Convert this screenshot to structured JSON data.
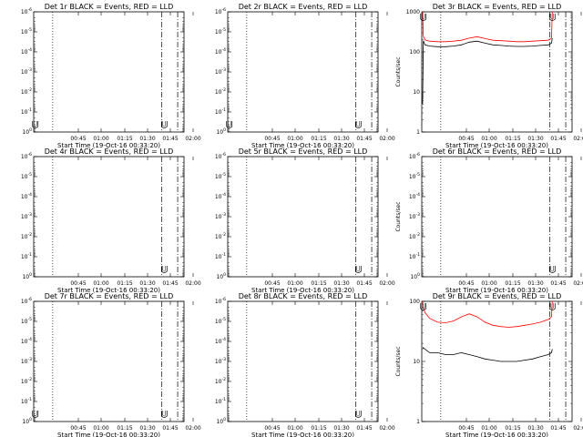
{
  "chart_data": [
    {
      "type": "line",
      "title": "Det 1r BLACK = Events, RED = LLD",
      "xlabel": "Start Time (19-Oct-16 00:33:20)",
      "ylabel": "",
      "xticks": [
        "00:45",
        "01:00",
        "01:15",
        "01:30",
        "01:45",
        "02:00"
      ],
      "yscale": "log",
      "ytick_labels": [
        "10^0",
        "10^-1",
        "10^-2",
        "10^-3",
        "10^-4",
        "10^-5",
        "10^-6"
      ],
      "yticks_value": [
        1,
        0.1,
        0.01,
        0.001,
        0.0001,
        1e-05,
        1e-06
      ],
      "ylim": [
        1,
        1e-06
      ],
      "xlim_minutes": [
        0,
        95
      ],
      "vlines": [
        {
          "t": 12,
          "style": "dotted"
        },
        {
          "t": 81,
          "style": "dashdot"
        },
        {
          "t": 91,
          "style": "dashdot"
        }
      ],
      "markers": [
        {
          "t": 1,
          "symbol": "U"
        },
        {
          "t": 82.5,
          "symbol": "U"
        }
      ],
      "series": []
    },
    {
      "type": "line",
      "title": "Det 2r BLACK = Events, RED = LLD",
      "xlabel": "Start Time (19-Oct-16 00:33:20)",
      "ylabel": "",
      "xticks": [
        "00:45",
        "01:00",
        "01:15",
        "01:30",
        "01:45",
        "02:00"
      ],
      "yscale": "log",
      "ytick_labels": [
        "10^0",
        "10^-1",
        "10^-2",
        "10^-3",
        "10^-4",
        "10^-5",
        "10^-6"
      ],
      "yticks_value": [
        1,
        0.1,
        0.01,
        0.001,
        0.0001,
        1e-05,
        1e-06
      ],
      "ylim": [
        1,
        1e-06
      ],
      "xlim_minutes": [
        0,
        95
      ],
      "vlines": [
        {
          "t": 12,
          "style": "dotted"
        },
        {
          "t": 81,
          "style": "dashdot"
        },
        {
          "t": 91,
          "style": "dashdot"
        }
      ],
      "markers": [
        {
          "t": 1,
          "symbol": "U"
        },
        {
          "t": 82.5,
          "symbol": "U"
        }
      ],
      "series": []
    },
    {
      "type": "line",
      "title": "Det 3r BLACK = Events, RED = LLD",
      "xlabel": "Start Time (19-Oct-16 00:33:20)",
      "ylabel": "Counts/sec",
      "xticks": [
        "00:45",
        "01:00",
        "01:15",
        "01:30",
        "01:45",
        "02:00"
      ],
      "yscale": "log",
      "ytick_labels": [
        "1",
        "10",
        "100",
        "1000"
      ],
      "yticks_value": [
        1,
        10,
        100,
        1000
      ],
      "ylim": [
        1,
        1000
      ],
      "xlim_minutes": [
        0,
        95
      ],
      "vlines": [
        {
          "t": 12,
          "style": "dotted"
        },
        {
          "t": 81,
          "style": "dashdot"
        },
        {
          "t": 91,
          "style": "dashdot"
        }
      ],
      "markers": [
        {
          "t": 1,
          "symbol": "U"
        },
        {
          "t": 82.5,
          "symbol": "U"
        }
      ],
      "series": [
        {
          "color": "#ff0000",
          "t": [
            0.5,
            1,
            2,
            5,
            10,
            15,
            20,
            25,
            30,
            35,
            40,
            45,
            50,
            55,
            60,
            65,
            70,
            75,
            80,
            82,
            82.5
          ],
          "y": [
            1000,
            250,
            200,
            185,
            180,
            180,
            185,
            195,
            220,
            240,
            215,
            195,
            190,
            185,
            180,
            180,
            185,
            190,
            195,
            220,
            1000
          ]
        },
        {
          "color": "#000000",
          "t": [
            0.5,
            1,
            2,
            5,
            10,
            15,
            20,
            25,
            30,
            35,
            40,
            45,
            50,
            55,
            60,
            65,
            70,
            75,
            80,
            82,
            82.5
          ],
          "y": [
            5,
            190,
            150,
            140,
            135,
            135,
            140,
            150,
            175,
            185,
            165,
            150,
            145,
            140,
            137,
            137,
            140,
            145,
            150,
            165,
            220
          ]
        }
      ]
    },
    {
      "type": "line",
      "title": "Det 4r BLACK = Events, RED = LLD",
      "xlabel": "Start Time (19-Oct-16 00:33:20)",
      "ylabel": "",
      "xticks": [
        "00:45",
        "01:00",
        "01:15",
        "01:30",
        "01:45",
        "02:00"
      ],
      "yscale": "log",
      "ytick_labels": [
        "10^0",
        "10^-1",
        "10^-2",
        "10^-3",
        "10^-4",
        "10^-5",
        "10^-6"
      ],
      "yticks_value": [
        1,
        0.1,
        0.01,
        0.001,
        0.0001,
        1e-05,
        1e-06
      ],
      "ylim": [
        1,
        1e-06
      ],
      "xlim_minutes": [
        0,
        95
      ],
      "vlines": [
        {
          "t": 12,
          "style": "dotted"
        },
        {
          "t": 81,
          "style": "dashdot"
        },
        {
          "t": 91,
          "style": "dashdot"
        }
      ],
      "markers": [
        {
          "t": 82.5,
          "symbol": "U"
        }
      ],
      "series": []
    },
    {
      "type": "line",
      "title": "Det 5r BLACK = Events, RED = LLD",
      "xlabel": "Start Time (19-Oct-16 00:33:20)",
      "ylabel": "",
      "xticks": [
        "00:45",
        "01:00",
        "01:15",
        "01:30",
        "01:45",
        "02:00"
      ],
      "yscale": "log",
      "ytick_labels": [
        "10^0",
        "10^-1",
        "10^-2",
        "10^-3",
        "10^-4",
        "10^-5",
        "10^-6"
      ],
      "yticks_value": [
        1,
        0.1,
        0.01,
        0.001,
        0.0001,
        1e-05,
        1e-06
      ],
      "ylim": [
        1,
        1e-06
      ],
      "xlim_minutes": [
        0,
        95
      ],
      "vlines": [
        {
          "t": 12,
          "style": "dotted"
        },
        {
          "t": 81,
          "style": "dashdot"
        },
        {
          "t": 91,
          "style": "dashdot"
        }
      ],
      "markers": [
        {
          "t": 82.5,
          "symbol": "U"
        }
      ],
      "series": []
    },
    {
      "type": "line",
      "title": "Det 6r BLACK = Events, RED = LLD",
      "xlabel": "Start Time (19-Oct-16 00:33:20)",
      "ylabel": "Counts/sec",
      "xticks": [
        "00:45",
        "01:00",
        "01:15",
        "01:30",
        "01:45",
        "02:00"
      ],
      "yscale": "log",
      "ytick_labels": [
        "10^0",
        "10^-1",
        "10^-2",
        "10^-3",
        "10^-4",
        "10^-5",
        "10^-6"
      ],
      "yticks_value": [
        1,
        0.1,
        0.01,
        0.001,
        0.0001,
        1e-05,
        1e-06
      ],
      "ylim": [
        1,
        1e-06
      ],
      "xlim_minutes": [
        0,
        95
      ],
      "vlines": [
        {
          "t": 12,
          "style": "dotted"
        },
        {
          "t": 81,
          "style": "dashdot"
        },
        {
          "t": 91,
          "style": "dashdot"
        }
      ],
      "markers": [
        {
          "t": 82.5,
          "symbol": "U"
        }
      ],
      "series": []
    },
    {
      "type": "line",
      "title": "Det 7r BLACK = Events, RED = LLD",
      "xlabel": "Start Time (19-Oct-16 00:33:20)",
      "ylabel": "",
      "xticks": [
        "00:45",
        "01:00",
        "01:15",
        "01:30",
        "01:45",
        "02:00"
      ],
      "yscale": "log",
      "ytick_labels": [
        "10^0",
        "10^-1",
        "10^-2",
        "10^-3",
        "10^-4",
        "10^-5",
        "10^-6"
      ],
      "yticks_value": [
        1,
        0.1,
        0.01,
        0.001,
        0.0001,
        1e-05,
        1e-06
      ],
      "ylim": [
        1,
        1e-06
      ],
      "xlim_minutes": [
        0,
        95
      ],
      "vlines": [
        {
          "t": 12,
          "style": "dotted"
        },
        {
          "t": 81,
          "style": "dashdot"
        },
        {
          "t": 91,
          "style": "dashdot"
        }
      ],
      "markers": [
        {
          "t": 1,
          "symbol": "U"
        },
        {
          "t": 82.5,
          "symbol": "U"
        }
      ],
      "series": []
    },
    {
      "type": "line",
      "title": "Det 8r BLACK = Events, RED = LLD",
      "xlabel": "Start Time (19-Oct-16 00:33:20)",
      "ylabel": "",
      "xticks": [
        "00:45",
        "01:00",
        "01:15",
        "01:30",
        "01:45",
        "02:00"
      ],
      "yscale": "log",
      "ytick_labels": [
        "10^0",
        "10^-1",
        "10^-2",
        "10^-3",
        "10^-4",
        "10^-5",
        "10^-6"
      ],
      "yticks_value": [
        1,
        0.1,
        0.01,
        0.001,
        0.0001,
        1e-05,
        1e-06
      ],
      "ylim": [
        1,
        1e-06
      ],
      "xlim_minutes": [
        0,
        95
      ],
      "vlines": [
        {
          "t": 12,
          "style": "dotted"
        },
        {
          "t": 81,
          "style": "dashdot"
        },
        {
          "t": 91,
          "style": "dashdot"
        }
      ],
      "markers": [
        {
          "t": 82.5,
          "symbol": "U"
        }
      ],
      "series": []
    },
    {
      "type": "line",
      "title": "Det 9r BLACK = Events, RED = LLD",
      "xlabel": "Start Time (19-Oct-16 00:33:20)",
      "ylabel": "Counts/sec",
      "xticks": [
        "00:45",
        "01:00",
        "01:15",
        "01:30",
        "01:45",
        "02:00"
      ],
      "yscale": "log",
      "ytick_labels": [
        "1",
        "10",
        "100"
      ],
      "yticks_value": [
        1,
        10,
        100
      ],
      "ylim": [
        1,
        100
      ],
      "xlim_minutes": [
        0,
        95
      ],
      "vlines": [
        {
          "t": 12,
          "style": "dotted"
        },
        {
          "t": 81,
          "style": "dashdot"
        },
        {
          "t": 91,
          "style": "dashdot"
        }
      ],
      "markers": [
        {
          "t": 1,
          "symbol": "U"
        },
        {
          "t": 82.5,
          "symbol": "U"
        }
      ],
      "series": [
        {
          "color": "#ff0000",
          "t": [
            0.5,
            1,
            2,
            5,
            10,
            15,
            20,
            25,
            30,
            35,
            40,
            45,
            50,
            55,
            60,
            65,
            70,
            75,
            80,
            82,
            82.5
          ],
          "y": [
            100,
            80,
            65,
            52,
            45,
            44,
            47,
            55,
            62,
            55,
            45,
            40,
            38,
            37,
            38,
            40,
            42,
            45,
            50,
            55,
            100
          ]
        },
        {
          "color": "#000000",
          "t": [
            0.5,
            1,
            2,
            5,
            10,
            15,
            20,
            25,
            30,
            35,
            40,
            45,
            50,
            55,
            60,
            65,
            70,
            75,
            80,
            82,
            82.5
          ],
          "y": [
            16,
            17,
            16,
            14,
            14,
            13,
            13,
            14,
            13,
            12,
            11,
            10.5,
            10,
            10,
            10,
            10.5,
            11,
            12,
            13,
            14,
            16
          ]
        }
      ]
    }
  ]
}
